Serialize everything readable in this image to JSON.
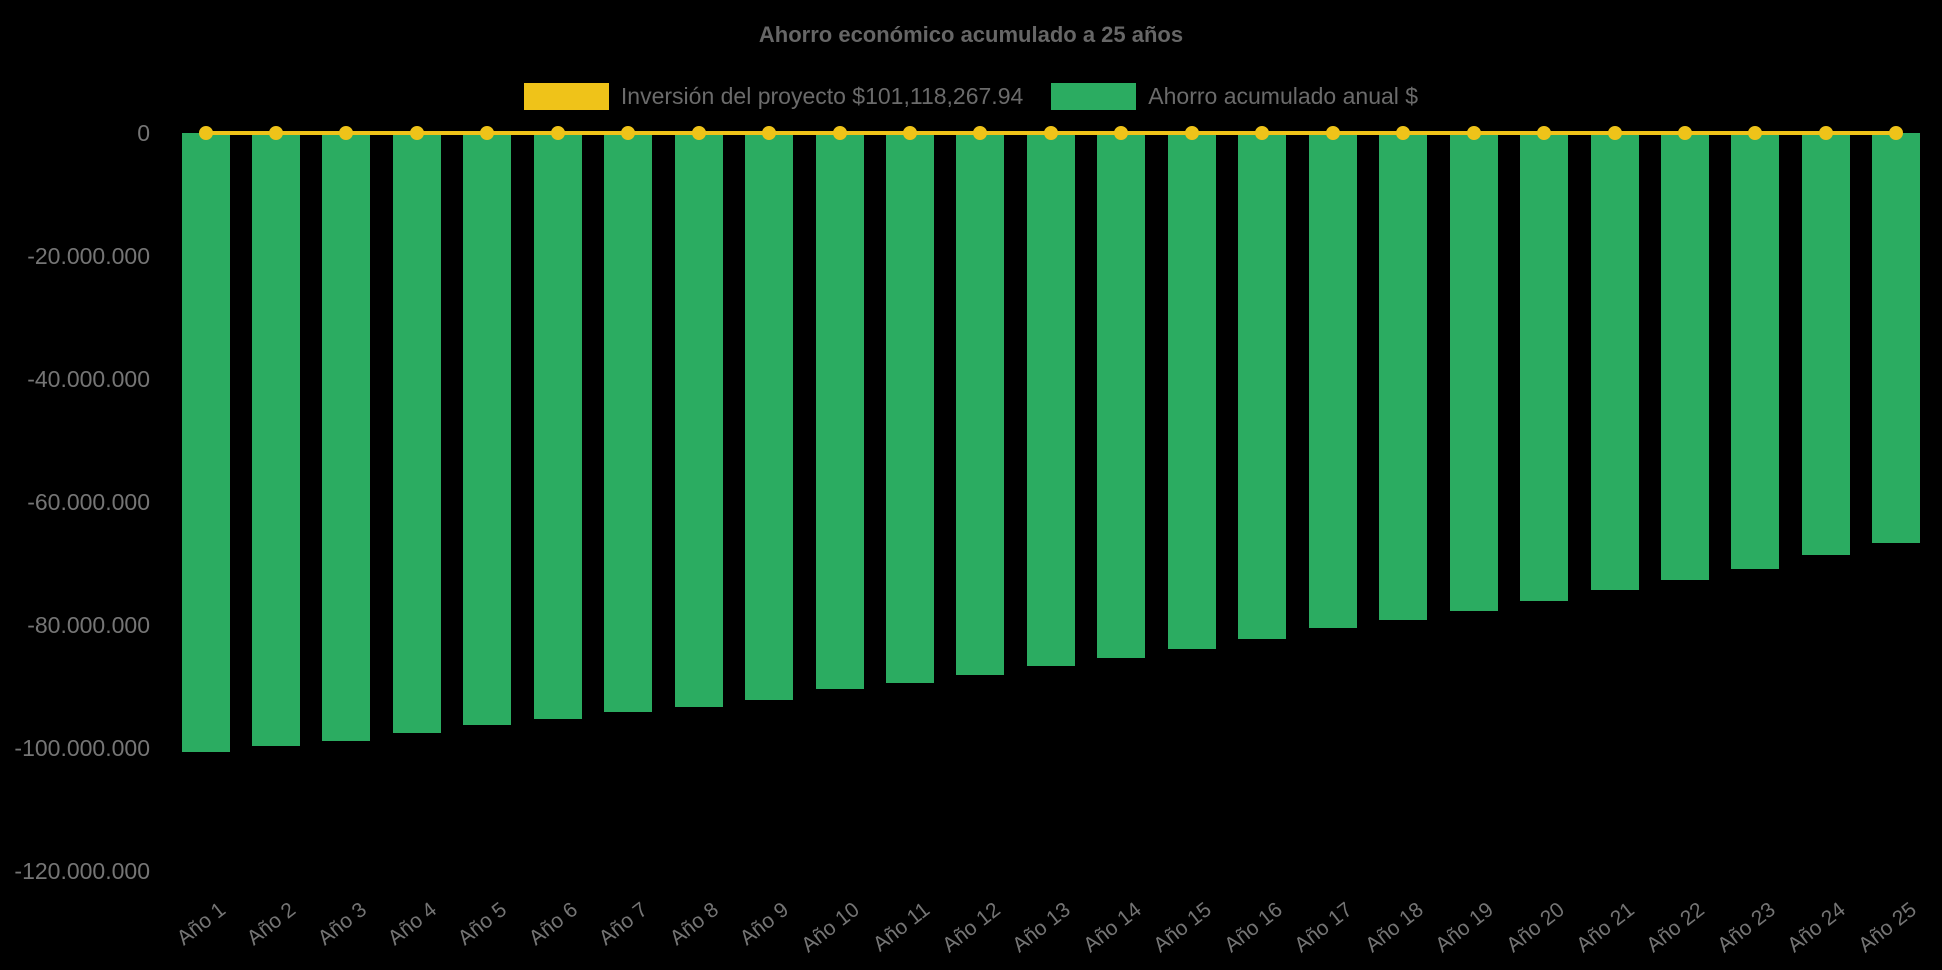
{
  "chart_data": {
    "type": "bar",
    "title": "Ahorro económico acumulado a 25 años",
    "background_color": "#000000",
    "legend_position": "top",
    "grid": false,
    "categories": [
      "Año 1",
      "Año 2",
      "Año 3",
      "Año 4",
      "Año 5",
      "Año 6",
      "Año 7",
      "Año 8",
      "Año 9",
      "Año 10",
      "Año 11",
      "Año 12",
      "Año 13",
      "Año 14",
      "Año 15",
      "Año 16",
      "Año 17",
      "Año 18",
      "Año 19",
      "Año 20",
      "Año 21",
      "Año 22",
      "Año 23",
      "Año 24",
      "Año 25"
    ],
    "series": [
      {
        "name": "Inversión del proyecto $101,118,267.94",
        "type": "line",
        "color": "#efc319",
        "values": [
          0,
          0,
          0,
          0,
          0,
          0,
          0,
          0,
          0,
          0,
          0,
          0,
          0,
          0,
          0,
          0,
          0,
          0,
          0,
          0,
          0,
          0,
          0,
          0,
          0
        ]
      },
      {
        "name": "Ahorro acumulado anual $",
        "type": "bar",
        "color": "#2bac61",
        "values": [
          -100800000,
          -99800000,
          -98900000,
          -97600000,
          -96400000,
          -95300000,
          -94300000,
          -93400000,
          -92200000,
          -90500000,
          -89500000,
          -88200000,
          -86700000,
          -85400000,
          -84000000,
          -82400000,
          -80600000,
          -79200000,
          -77800000,
          -76100000,
          -74400000,
          -72700000,
          -70900000,
          -68700000,
          -66800000
        ]
      }
    ],
    "ylim": [
      -120000000,
      0
    ],
    "yticks": {
      "values": [
        0,
        -20000000,
        -40000000,
        -60000000,
        -80000000,
        -100000000,
        -120000000
      ],
      "labels": [
        "0",
        "-20.000.000",
        "-40.000.000",
        "-60.000.000",
        "-80.000.000",
        "-100.000.000",
        "-120.000.000"
      ]
    },
    "text_colors": {
      "title": "#666666",
      "legend": "#6b6b6b",
      "ticks": "#757575"
    }
  }
}
